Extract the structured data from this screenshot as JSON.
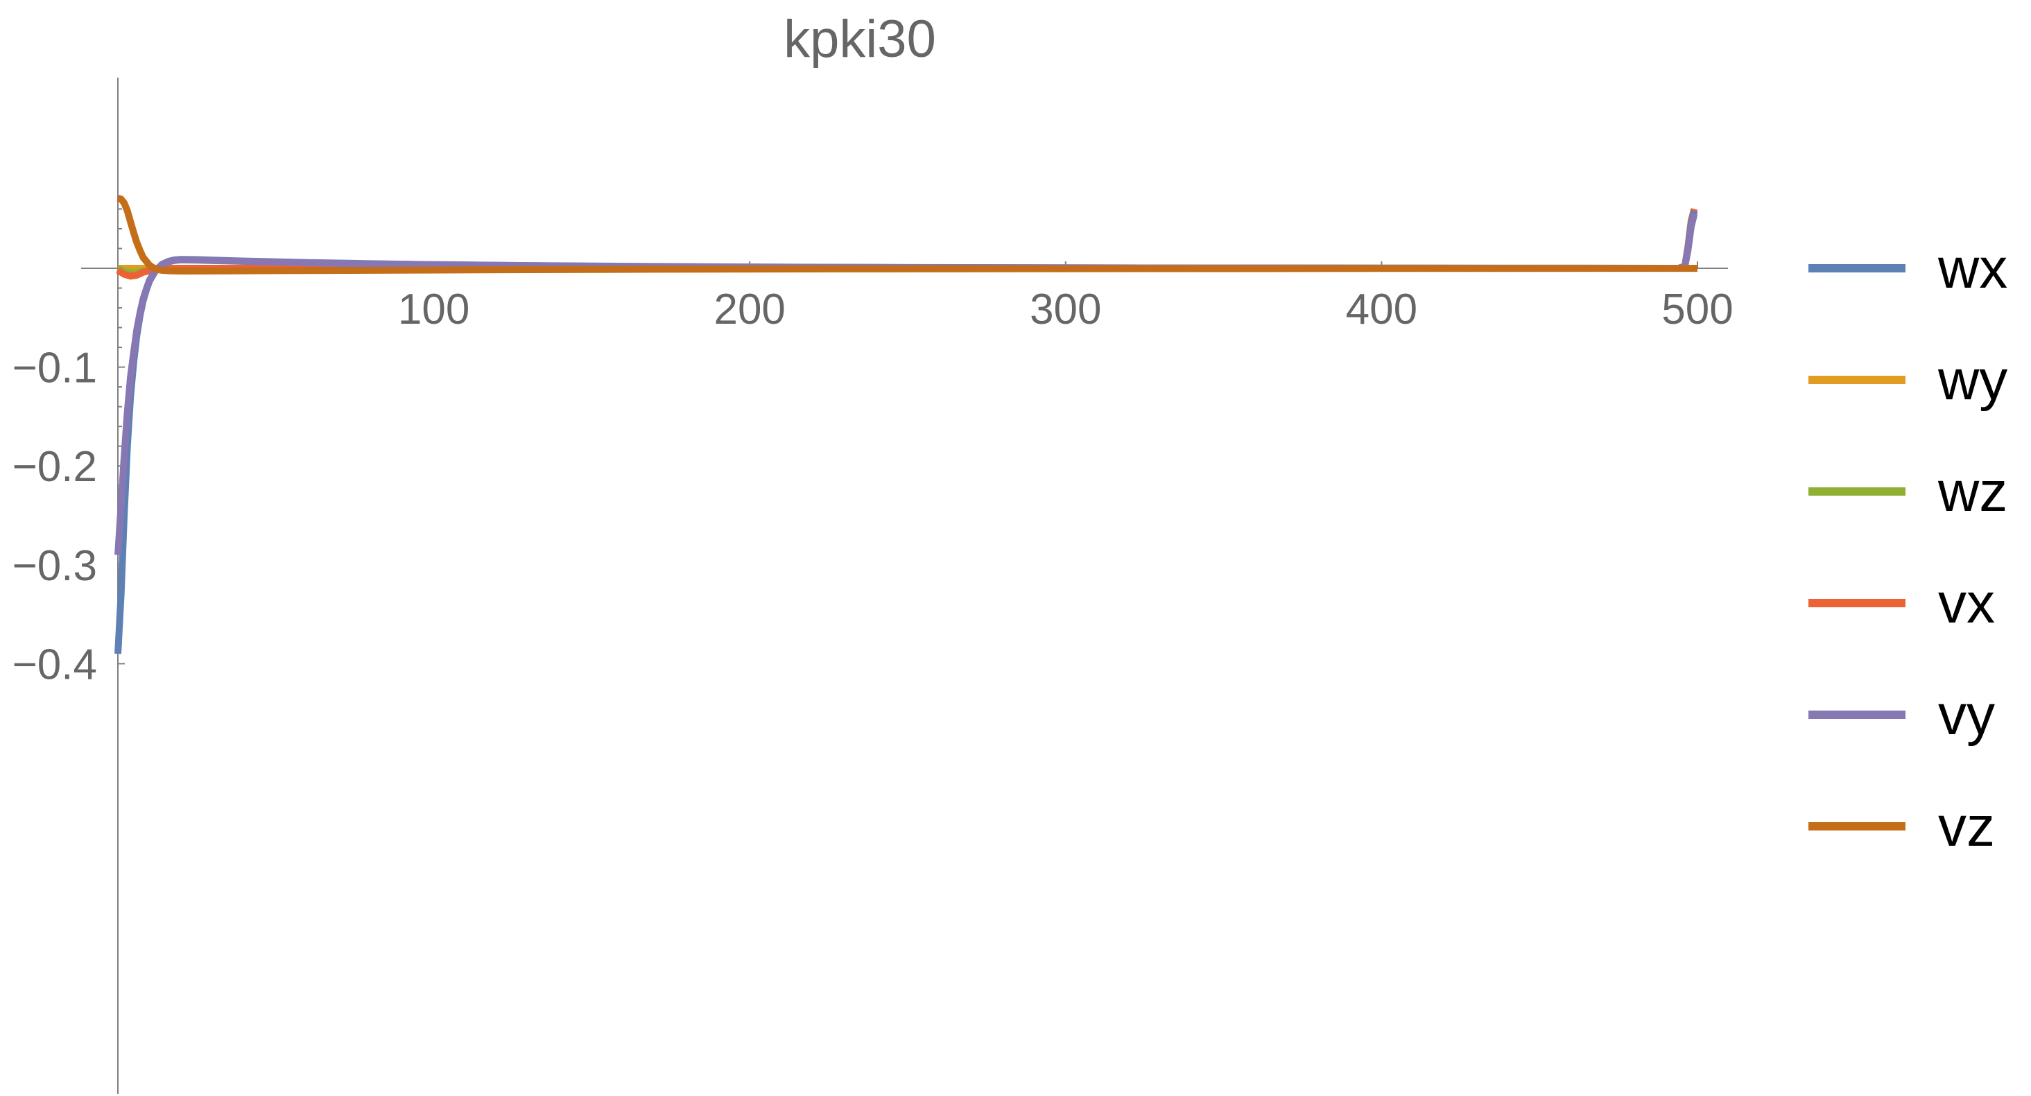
{
  "chart_data": {
    "type": "line",
    "title": "kpki30",
    "xlabel": "",
    "ylabel": "",
    "xlim": [
      0,
      510
    ],
    "ylim": [
      -0.41,
      0.08
    ],
    "x_ticks": [
      100,
      200,
      300,
      400,
      500
    ],
    "x_tick_labels": [
      "100",
      "200",
      "300",
      "400",
      "500"
    ],
    "y_ticks": [
      -0.1,
      -0.2,
      -0.3,
      -0.4
    ],
    "y_tick_labels": [
      "−0.1",
      "−0.2",
      "−0.3",
      "−0.4"
    ],
    "grid": false,
    "legend_position": "right",
    "series": [
      {
        "name": "wx",
        "color": "#5E81B5",
        "points": [
          [
            0,
            -0.39
          ],
          [
            1,
            -0.33
          ],
          [
            2,
            -0.25
          ],
          [
            3,
            -0.18
          ],
          [
            4,
            -0.13
          ],
          [
            5,
            -0.095
          ],
          [
            6,
            -0.068
          ],
          [
            7,
            -0.048
          ],
          [
            8,
            -0.033
          ],
          [
            9,
            -0.022
          ],
          [
            10,
            -0.013
          ],
          [
            12,
            -0.002
          ],
          [
            14,
            0.004
          ],
          [
            16,
            0.007
          ],
          [
            18,
            0.0085
          ],
          [
            20,
            0.009
          ],
          [
            25,
            0.0088
          ],
          [
            30,
            0.0082
          ],
          [
            40,
            0.0073
          ],
          [
            60,
            0.0058
          ],
          [
            80,
            0.0046
          ],
          [
            100,
            0.0037
          ],
          [
            130,
            0.0027
          ],
          [
            160,
            0.002
          ],
          [
            200,
            0.0013
          ],
          [
            250,
            0.0008
          ],
          [
            300,
            0.0005
          ],
          [
            350,
            0.0003
          ],
          [
            400,
            0.0002
          ],
          [
            450,
            0.0001
          ],
          [
            490,
            0.0
          ],
          [
            494,
            0.0
          ],
          [
            496,
            0.002
          ],
          [
            497,
            0.02
          ],
          [
            498,
            0.045
          ],
          [
            499,
            0.058
          ]
        ]
      },
      {
        "name": "wy",
        "color": "#E19C24",
        "points": [
          [
            0,
            0
          ],
          [
            500,
            0
          ]
        ]
      },
      {
        "name": "wz",
        "color": "#8FB032",
        "points": [
          [
            0,
            0
          ],
          [
            2,
            -0.003
          ],
          [
            5,
            -0.005
          ],
          [
            8,
            -0.003
          ],
          [
            12,
            -0.001
          ],
          [
            20,
            0
          ],
          [
            500,
            0
          ]
        ]
      },
      {
        "name": "vx",
        "color": "#EB6235",
        "points": [
          [
            0,
            -0.002
          ],
          [
            2,
            -0.006
          ],
          [
            4,
            -0.008
          ],
          [
            6,
            -0.007
          ],
          [
            8,
            -0.004
          ],
          [
            12,
            -0.001
          ],
          [
            20,
            0
          ],
          [
            490,
            0
          ],
          [
            494,
            0
          ],
          [
            496,
            0.002
          ],
          [
            497,
            0.022
          ],
          [
            498,
            0.048
          ],
          [
            499,
            0.06
          ]
        ]
      },
      {
        "name": "vy",
        "color": "#8778B3",
        "points": [
          [
            0,
            -0.29
          ],
          [
            1,
            -0.24
          ],
          [
            2,
            -0.19
          ],
          [
            3,
            -0.145
          ],
          [
            4,
            -0.11
          ],
          [
            5,
            -0.085
          ],
          [
            6,
            -0.062
          ],
          [
            7,
            -0.045
          ],
          [
            8,
            -0.031
          ],
          [
            9,
            -0.021
          ],
          [
            10,
            -0.012
          ],
          [
            12,
            -0.002
          ],
          [
            14,
            0.004
          ],
          [
            16,
            0.0065
          ],
          [
            18,
            0.008
          ],
          [
            20,
            0.0085
          ],
          [
            25,
            0.0083
          ],
          [
            30,
            0.0078
          ],
          [
            40,
            0.007
          ],
          [
            60,
            0.0056
          ],
          [
            80,
            0.0045
          ],
          [
            100,
            0.0036
          ],
          [
            130,
            0.0026
          ],
          [
            160,
            0.0019
          ],
          [
            200,
            0.0012
          ],
          [
            250,
            0.0007
          ],
          [
            300,
            0.0004
          ],
          [
            350,
            0.0003
          ],
          [
            400,
            0.0002
          ],
          [
            450,
            0.0001
          ],
          [
            490,
            0.0
          ],
          [
            494,
            0.0
          ],
          [
            496,
            0.002
          ],
          [
            497,
            0.018
          ],
          [
            498,
            0.042
          ],
          [
            499,
            0.055
          ]
        ]
      },
      {
        "name": "vz",
        "color": "#C56E1A",
        "points": [
          [
            0,
            0.071
          ],
          [
            1,
            0.07
          ],
          [
            2,
            0.066
          ],
          [
            3,
            0.058
          ],
          [
            4,
            0.047
          ],
          [
            5,
            0.036
          ],
          [
            6,
            0.026
          ],
          [
            7,
            0.018
          ],
          [
            8,
            0.011
          ],
          [
            10,
            0.003
          ],
          [
            12,
            -0.001
          ],
          [
            14,
            -0.002
          ],
          [
            16,
            -0.0025
          ],
          [
            20,
            -0.0028
          ],
          [
            30,
            -0.0027
          ],
          [
            50,
            -0.0024
          ],
          [
            80,
            -0.002
          ],
          [
            120,
            -0.0015
          ],
          [
            170,
            -0.001
          ],
          [
            230,
            -0.0006
          ],
          [
            300,
            -0.0004
          ],
          [
            400,
            -0.0002
          ],
          [
            500,
            -0.0001
          ]
        ]
      }
    ]
  }
}
